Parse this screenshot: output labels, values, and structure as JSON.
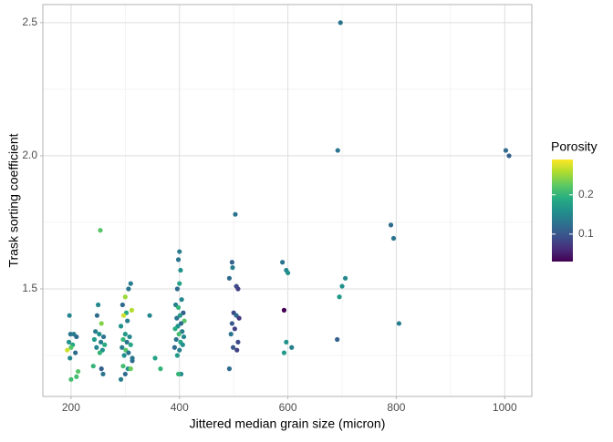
{
  "chart_data": {
    "type": "scatter",
    "xlabel": "Jittered median grain size (micron)",
    "ylabel": "Trask sorting coefficient",
    "legend_title": "Porosity",
    "x": [
      197,
      199,
      205,
      210,
      196,
      203,
      193,
      200,
      208,
      198,
      200,
      210,
      213,
      254,
      250,
      248,
      256,
      245,
      252,
      260,
      243,
      255,
      262,
      247,
      258,
      253,
      241,
      256,
      259,
      310,
      306,
      300,
      295,
      312,
      302,
      297,
      304,
      292,
      300,
      308,
      296,
      303,
      310,
      294,
      301,
      306,
      298,
      313,
      296,
      305,
      310,
      300,
      292,
      313,
      345,
      355,
      365,
      400,
      398,
      402,
      400,
      396,
      404,
      393,
      398,
      407,
      401,
      395,
      409,
      403,
      397,
      392,
      405,
      399,
      408,
      394,
      402,
      406,
      391,
      400,
      396,
      403,
      398,
      503,
      497,
      498,
      492,
      505,
      508,
      500,
      505,
      510,
      497,
      502,
      495,
      508,
      499,
      506,
      492,
      590,
      597,
      600,
      593,
      597,
      607,
      593,
      697,
      692,
      706,
      700,
      695,
      691,
      790,
      795,
      805,
      1002,
      1008
    ],
    "values": [
      1.4,
      1.33,
      1.33,
      1.32,
      1.3,
      1.29,
      1.27,
      1.28,
      1.26,
      1.24,
      1.16,
      1.17,
      1.19,
      1.72,
      1.44,
      1.4,
      1.37,
      1.34,
      1.33,
      1.32,
      1.31,
      1.3,
      1.29,
      1.28,
      1.27,
      1.26,
      1.21,
      1.2,
      1.18,
      1.52,
      1.5,
      1.47,
      1.44,
      1.42,
      1.41,
      1.4,
      1.38,
      1.36,
      1.33,
      1.32,
      1.31,
      1.3,
      1.29,
      1.28,
      1.27,
      1.26,
      1.25,
      1.23,
      1.21,
      1.2,
      1.2,
      1.18,
      1.16,
      1.24,
      1.4,
      1.24,
      1.2,
      1.64,
      1.61,
      1.57,
      1.52,
      1.5,
      1.46,
      1.44,
      1.43,
      1.41,
      1.4,
      1.39,
      1.38,
      1.37,
      1.36,
      1.35,
      1.34,
      1.33,
      1.32,
      1.31,
      1.3,
      1.29,
      1.28,
      1.27,
      1.25,
      1.18,
      1.18,
      1.78,
      1.6,
      1.58,
      1.54,
      1.51,
      1.5,
      1.41,
      1.4,
      1.39,
      1.37,
      1.35,
      1.33,
      1.3,
      1.28,
      1.27,
      1.2,
      1.6,
      1.57,
      1.56,
      1.42,
      1.3,
      1.28,
      1.26,
      2.5,
      2.02,
      1.54,
      1.51,
      1.47,
      1.31,
      1.74,
      1.69,
      1.37,
      2.02,
      2.0
    ],
    "porosity": [
      0.15,
      0.13,
      0.14,
      0.12,
      0.16,
      0.18,
      0.27,
      0.22,
      0.12,
      0.15,
      0.21,
      0.21,
      0.22,
      0.22,
      0.15,
      0.12,
      0.24,
      0.14,
      0.16,
      0.13,
      0.17,
      0.14,
      0.19,
      0.15,
      0.16,
      0.2,
      0.2,
      0.11,
      0.13,
      0.14,
      0.13,
      0.25,
      0.12,
      0.26,
      0.19,
      0.27,
      0.14,
      0.16,
      0.17,
      0.15,
      0.2,
      0.13,
      0.18,
      0.14,
      0.22,
      0.13,
      0.16,
      0.12,
      0.21,
      0.16,
      0.23,
      0.12,
      0.14,
      0.13,
      0.15,
      0.18,
      0.2,
      0.14,
      0.13,
      0.16,
      0.18,
      0.12,
      0.15,
      0.14,
      0.2,
      0.11,
      0.17,
      0.13,
      0.22,
      0.12,
      0.16,
      0.19,
      0.14,
      0.21,
      0.15,
      0.13,
      0.18,
      0.16,
      0.12,
      0.14,
      0.17,
      0.15,
      0.2,
      0.13,
      0.11,
      0.14,
      0.12,
      0.09,
      0.08,
      0.09,
      0.12,
      0.07,
      0.1,
      0.08,
      0.13,
      0.09,
      0.1,
      0.08,
      0.12,
      0.13,
      0.15,
      0.16,
      0.03,
      0.16,
      0.14,
      0.17,
      0.13,
      0.13,
      0.15,
      0.16,
      0.17,
      0.11,
      0.12,
      0.13,
      0.14,
      0.12,
      0.11
    ],
    "xlim": [
      148,
      1050
    ],
    "xticks": [
      200,
      400,
      600,
      800,
      1000
    ],
    "ylim": [
      1.096,
      2.568
    ],
    "yticks": [
      1.5,
      {
        "value": 2,
        "label": "2.0"
      },
      2.5
    ],
    "color_lim": [
      0.03,
      0.29
    ],
    "color_ticks": [
      0.1,
      0.2
    ],
    "colormap": [
      "#440154",
      "#472d7b",
      "#3b528b",
      "#2c728e",
      "#21918c",
      "#28ae80",
      "#5ec962",
      "#addc30",
      "#fde725"
    ],
    "grid": true
  }
}
